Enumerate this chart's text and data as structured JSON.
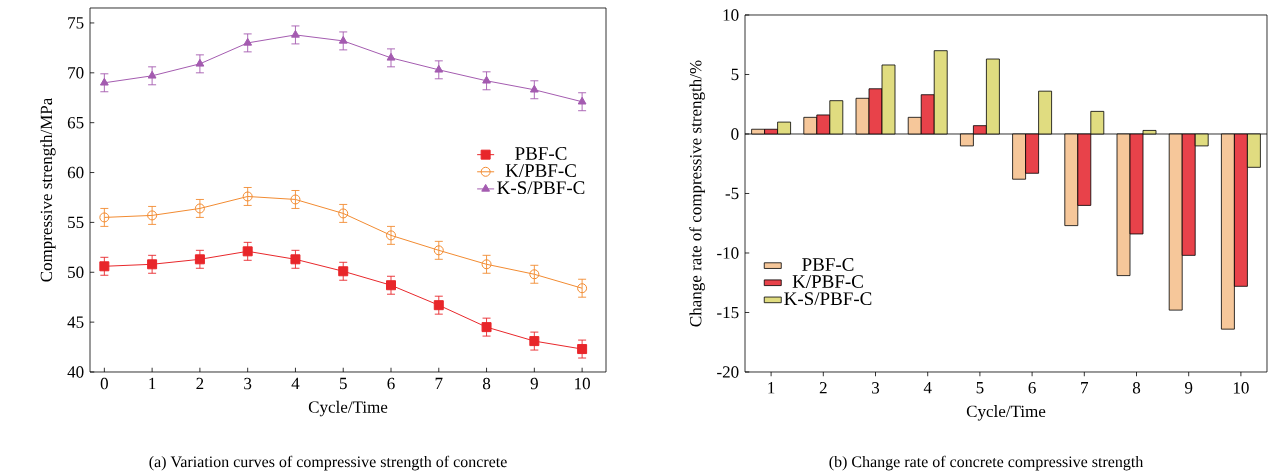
{
  "chart_data": [
    {
      "type": "line",
      "xlabel": "Cycle/Time",
      "ylabel": "Compressive strength/MPa",
      "x": [
        0,
        1,
        2,
        3,
        4,
        5,
        6,
        7,
        8,
        9,
        10
      ],
      "xlim": [
        -0.3,
        10.5
      ],
      "xticks": [
        0,
        1,
        2,
        3,
        4,
        5,
        6,
        7,
        8,
        9,
        10
      ],
      "ylim": [
        40,
        76.5
      ],
      "yticks": [
        40,
        45,
        50,
        55,
        60,
        65,
        70,
        75
      ],
      "legend": "right",
      "grid": false,
      "line_style": "solid",
      "series": [
        {
          "name": "PBF-C",
          "color": "#e8262a",
          "marker": "square",
          "values": [
            50.6,
            50.8,
            51.3,
            52.1,
            51.3,
            50.1,
            48.7,
            46.7,
            44.5,
            43.1,
            42.3
          ],
          "errors": [
            0.9,
            0.9,
            0.9,
            0.9,
            0.9,
            0.9,
            0.9,
            0.9,
            0.9,
            0.9,
            0.9
          ]
        },
        {
          "name": "K/PBF-C",
          "color": "#f28b30",
          "marker": "circle",
          "values": [
            55.5,
            55.7,
            56.4,
            57.6,
            57.3,
            55.9,
            53.7,
            52.2,
            50.8,
            49.8,
            48.4
          ],
          "errors": [
            0.9,
            0.9,
            0.9,
            0.9,
            0.9,
            0.9,
            0.9,
            0.9,
            0.9,
            0.9,
            0.9
          ]
        },
        {
          "name": "K-S/PBF-C",
          "color": "#a45bb0",
          "marker": "triangle",
          "values": [
            69.0,
            69.7,
            70.9,
            73.0,
            73.8,
            73.2,
            71.5,
            70.3,
            69.2,
            68.3,
            67.1
          ],
          "errors": [
            0.9,
            0.9,
            0.9,
            0.9,
            0.9,
            0.9,
            0.9,
            0.9,
            0.9,
            0.9,
            0.9
          ]
        }
      ],
      "annotations": [
        "(a) Variation curves of compressive strength of concrete"
      ]
    },
    {
      "type": "bar",
      "xlabel": "Cycle/Time",
      "ylabel": "Change rate of compressive strength/%",
      "categories": [
        "1",
        "2",
        "3",
        "4",
        "5",
        "6",
        "7",
        "8",
        "9",
        "10"
      ],
      "ylim": [
        -20,
        10
      ],
      "yticks": [
        -20,
        -15,
        -10,
        -5,
        0,
        5,
        10
      ],
      "legend": "left",
      "grid": false,
      "ref_lines": [
        {
          "axis": "y",
          "value": 0,
          "color": "#000000"
        }
      ],
      "series": [
        {
          "name": "PBF-C",
          "color": "#f6c79a",
          "values": [
            0.4,
            1.4,
            3.0,
            1.4,
            -1.0,
            -3.8,
            -7.7,
            -11.9,
            -14.8,
            -16.4
          ]
        },
        {
          "name": "K/PBF-C",
          "color": "#e8424a",
          "values": [
            0.4,
            1.6,
            3.8,
            3.3,
            0.7,
            -3.3,
            -6.0,
            -8.4,
            -10.2,
            -12.8
          ]
        },
        {
          "name": "K-S/PBF-C",
          "color": "#e0dc80",
          "values": [
            1.0,
            2.8,
            5.8,
            7.0,
            6.3,
            3.6,
            1.9,
            0.3,
            -1.0,
            -2.8
          ]
        }
      ],
      "annotations": [
        "(b) Change rate of concrete compressive strength"
      ]
    }
  ]
}
